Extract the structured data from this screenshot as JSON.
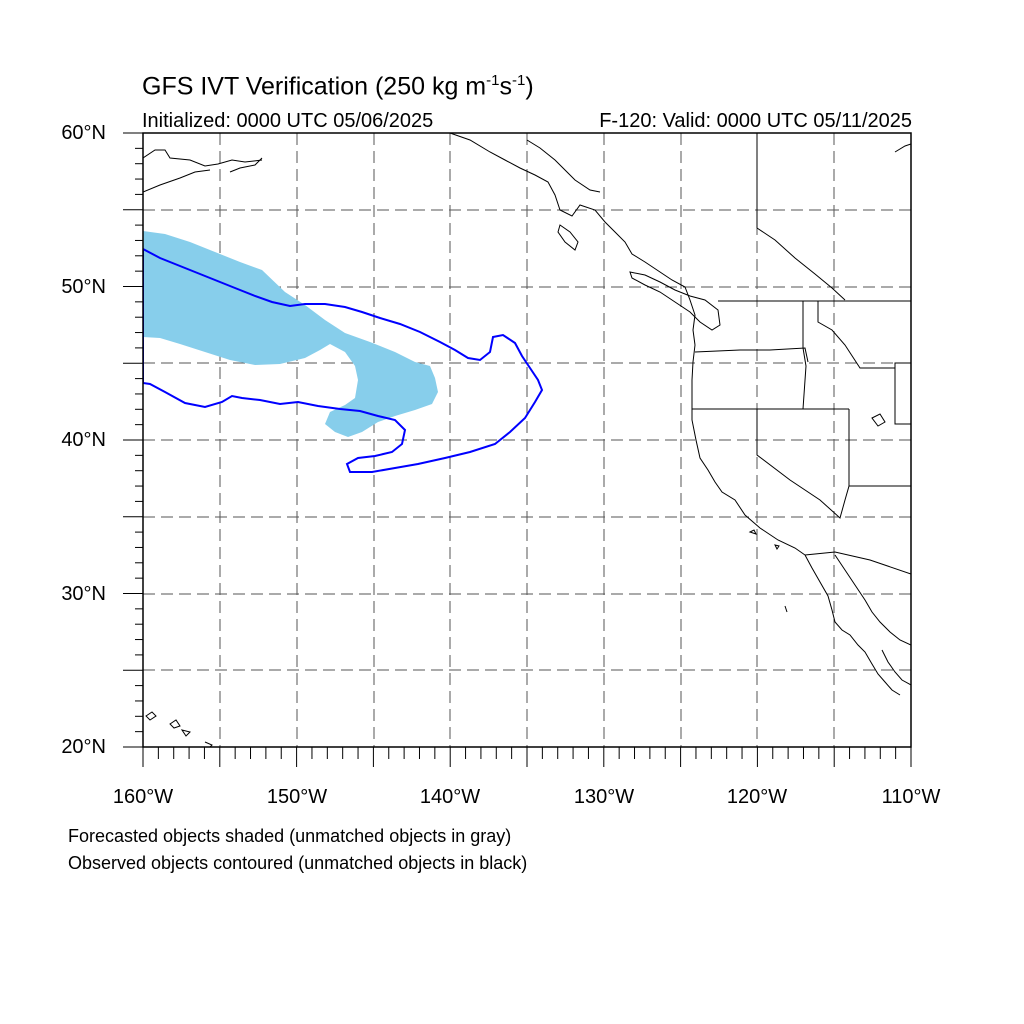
{
  "title": {
    "main": "GFS IVT Verification (250 kg m",
    "exp1": "-1",
    "mid": "s",
    "exp2": "-1",
    "end": ")"
  },
  "initialized": "Initialized: 0000 UTC 05/06/2025",
  "forecast_valid": "F-120: Valid: 0000 UTC 05/11/2025",
  "legend_notes": [
    "Forecasted objects shaded (unmatched objects in gray)",
    "Observed objects contoured (unmatched objects in black)"
  ],
  "map": {
    "lon_range": [
      -160,
      -110
    ],
    "lat_range": [
      20,
      60
    ],
    "lat_labels": [
      "60°N",
      "50°N",
      "40°N",
      "30°N",
      "20°N"
    ],
    "lon_labels": [
      "160°W",
      "150°W",
      "140°W",
      "130°W",
      "120°W",
      "110°W"
    ],
    "gridlines": "dashed every 5°",
    "forecast_fill_color": "#87ceeb",
    "observed_contour_color": "#0000ff"
  }
}
